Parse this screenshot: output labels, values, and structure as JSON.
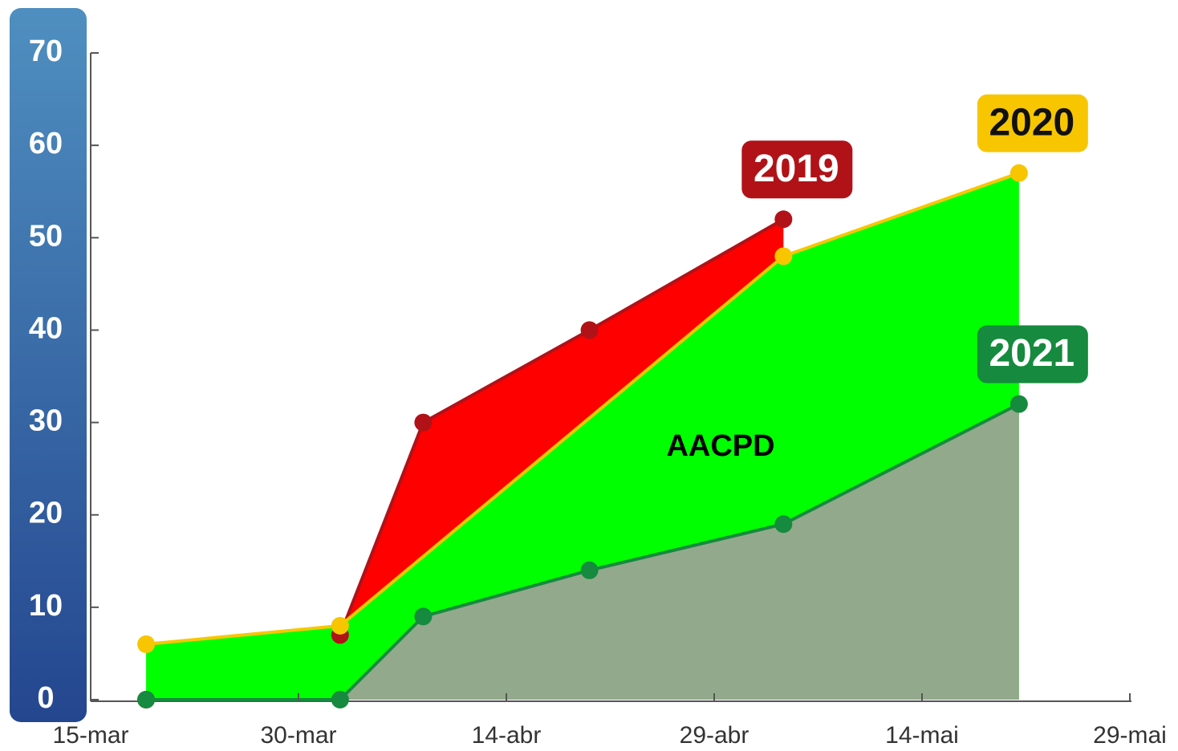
{
  "chart_data": {
    "type": "area",
    "annotation": "AACPD",
    "x": [
      "19-mar",
      "2-abr",
      "8-abr",
      "20-abr",
      "4-mai",
      "21-mai"
    ],
    "series": [
      {
        "name": "2019",
        "color": "#ff0000",
        "badge_color": "#b01218",
        "values": [
          0,
          7,
          30,
          40,
          52,
          null
        ]
      },
      {
        "name": "2020",
        "color": "#00ff00",
        "badge_color": "#f7c600",
        "values": [
          6,
          8,
          null,
          null,
          48,
          57
        ]
      },
      {
        "name": "2021",
        "color": "#93a98c",
        "badge_color": "#168a3e",
        "values": [
          0,
          0,
          9,
          14,
          19,
          32
        ]
      }
    ],
    "xlim": [
      "15-mar",
      "29-mai"
    ],
    "xticks": [
      "15-mar",
      "30-mar",
      "14-abr",
      "29-abr",
      "14-mai",
      "29-mai"
    ],
    "ylim": [
      0,
      70
    ],
    "yticks": [
      0,
      10,
      20,
      30,
      40,
      50,
      60,
      70
    ]
  }
}
